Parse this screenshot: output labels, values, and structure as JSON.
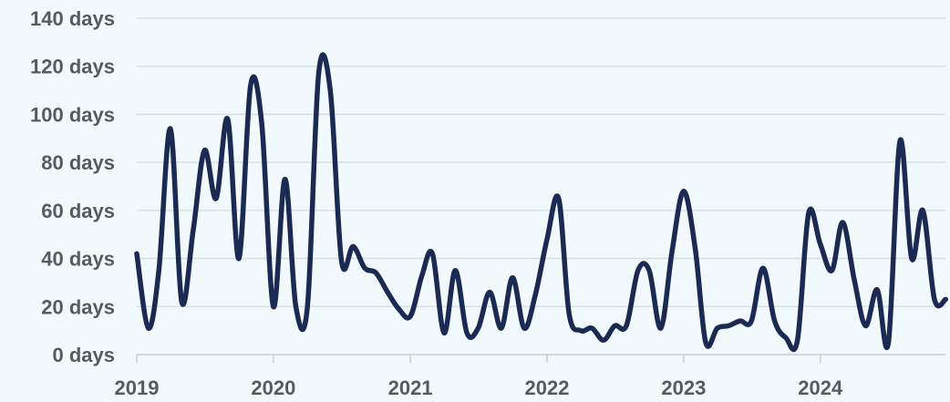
{
  "chart_data": {
    "type": "line",
    "title": "",
    "xlabel": "",
    "ylabel": "",
    "x_ticks": [
      "2019",
      "2020",
      "2021",
      "2022",
      "2023",
      "2024"
    ],
    "y_ticks": [
      "0 days",
      "20 days",
      "40 days",
      "60 days",
      "80 days",
      "100 days",
      "120 days",
      "140 days"
    ],
    "ylim": [
      0,
      140
    ],
    "xlim": [
      "2019-01-01",
      "2024-12-01"
    ],
    "grid": true,
    "line_color": "#1a2a52",
    "series": [
      {
        "x": [
          "2019-01-01",
          "2019-02-01",
          "2019-03-01",
          "2019-04-01",
          "2019-05-01",
          "2019-06-01",
          "2019-07-01",
          "2019-08-01",
          "2019-09-01",
          "2019-10-01",
          "2019-11-01",
          "2019-12-01",
          "2020-01-01",
          "2020-02-01",
          "2020-03-01",
          "2020-04-01",
          "2020-05-01",
          "2020-06-01",
          "2020-07-01",
          "2020-08-01",
          "2020-09-01",
          "2020-10-01",
          "2020-11-01",
          "2020-12-01",
          "2021-01-01",
          "2021-02-01",
          "2021-03-01",
          "2021-04-01",
          "2021-05-01",
          "2021-06-01",
          "2021-07-01",
          "2021-08-01",
          "2021-09-01",
          "2021-10-01",
          "2021-11-01",
          "2021-12-01",
          "2022-01-01",
          "2022-02-01",
          "2022-03-01",
          "2022-04-01",
          "2022-05-01",
          "2022-06-01",
          "2022-07-01",
          "2022-08-01",
          "2022-09-01",
          "2022-10-01",
          "2022-11-01",
          "2022-12-01",
          "2023-01-01",
          "2023-02-01",
          "2023-03-01",
          "2023-04-01",
          "2023-05-01",
          "2023-06-01",
          "2023-07-01",
          "2023-08-01",
          "2023-09-01",
          "2023-10-01",
          "2023-11-01",
          "2023-12-01",
          "2024-01-01",
          "2024-02-01",
          "2024-03-01",
          "2024-04-01",
          "2024-05-01",
          "2024-06-01",
          "2024-07-01",
          "2024-08-01",
          "2024-09-01",
          "2024-10-01",
          "2024-11-01",
          "2024-12-01"
        ],
        "values": [
          42,
          11,
          35,
          94,
          22,
          52,
          85,
          65,
          98,
          40,
          112,
          96,
          20,
          73,
          20,
          20,
          117,
          110,
          39,
          45,
          36,
          34,
          26,
          19,
          16,
          33,
          42,
          9,
          35,
          9,
          11,
          26,
          11,
          32,
          11,
          25,
          48,
          65,
          17,
          10,
          11,
          6,
          12,
          12,
          35,
          35,
          11,
          43,
          68,
          44,
          5,
          11,
          12,
          14,
          14,
          36,
          14,
          7,
          6,
          59,
          46,
          35,
          55,
          31,
          12,
          27,
          5,
          89,
          40,
          60,
          23,
          23
        ]
      }
    ]
  }
}
